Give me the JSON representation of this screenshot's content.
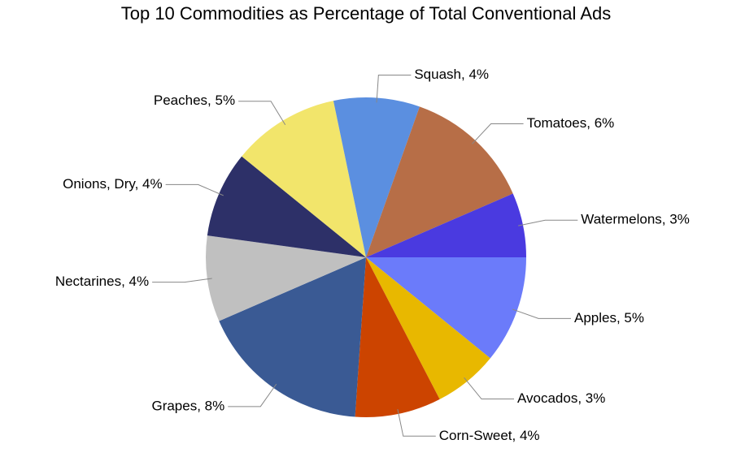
{
  "chart_data": {
    "type": "pie",
    "title": "Top 10 Commodities as Percentage of Total Conventional Ads",
    "values": [
      5,
      3,
      4,
      8,
      4,
      4,
      5,
      4,
      6,
      3
    ],
    "value_labels": [
      "Apples, 5%",
      "Avocados, 3%",
      "Corn-Sweet, 4%",
      "Grapes, 8%",
      "Nectarines, 4%",
      "Onions, Dry, 4%",
      "Peaches, 5%",
      "Squash, 4%",
      "Tomatoes, 6%",
      "Watermelons, 3%"
    ],
    "colors": [
      "#6b7bfa",
      "#e8b800",
      "#cc4400",
      "#3a5a94",
      "#c0c0c0",
      "#2d3068",
      "#f2e56b",
      "#5b8fe0",
      "#b76e47",
      "#4a3ae0"
    ]
  }
}
